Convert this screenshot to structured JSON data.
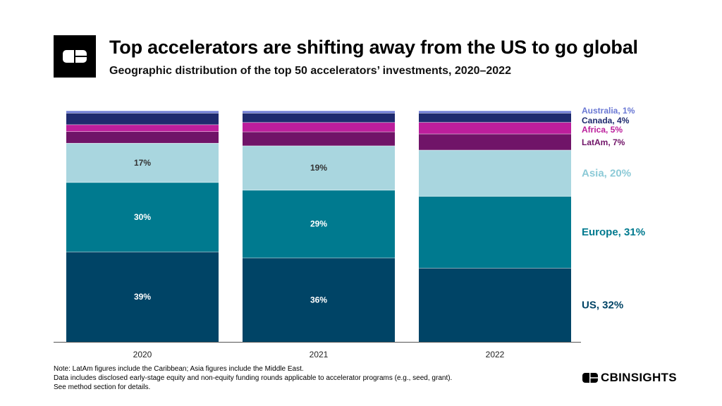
{
  "header": {
    "title": "Top accelerators are shifting away from the US to go global",
    "subtitle": "Geographic distribution of the top 50 accelerators’ investments, 2020–2022"
  },
  "colors": {
    "US": "#004466",
    "Europe": "#007a8f",
    "Asia": "#a9d6df",
    "LatAm": "#701468",
    "Africa": "#bc1e9c",
    "Canada": "#1e2a6e",
    "Australia": "#6a78d4"
  },
  "chart_data": {
    "type": "bar",
    "stacked": true,
    "categories": [
      "2020",
      "2021",
      "2022"
    ],
    "ylim": [
      0,
      100
    ],
    "series": [
      {
        "name": "US",
        "values": [
          39,
          36,
          32
        ],
        "labels": [
          "39%",
          "36%",
          ""
        ]
      },
      {
        "name": "Europe",
        "values": [
          30,
          29,
          31
        ],
        "labels": [
          "30%",
          "29%",
          ""
        ]
      },
      {
        "name": "Asia",
        "values": [
          17,
          19,
          20
        ],
        "labels": [
          "17%",
          "19%",
          ""
        ]
      },
      {
        "name": "LatAm",
        "values": [
          5,
          6,
          7
        ],
        "labels": [
          "",
          "",
          ""
        ]
      },
      {
        "name": "Africa",
        "values": [
          3,
          4,
          5
        ],
        "labels": [
          "",
          "",
          ""
        ]
      },
      {
        "name": "Canada",
        "values": [
          5,
          4,
          4
        ],
        "labels": [
          "",
          "",
          ""
        ]
      },
      {
        "name": "Australia",
        "values": [
          1,
          1,
          1
        ],
        "labels": [
          "",
          "",
          ""
        ]
      }
    ],
    "end_labels": [
      {
        "series": "Australia",
        "text": "Australia, 1%"
      },
      {
        "series": "Canada",
        "text": "Canada, 4%"
      },
      {
        "series": "Africa",
        "text": "Africa, 5%"
      },
      {
        "series": "LatAm",
        "text": "LatAm, 7%"
      },
      {
        "series": "Asia",
        "text": "Asia, 20%"
      },
      {
        "series": "Europe",
        "text": "Europe, 31%"
      },
      {
        "series": "US",
        "text": "US, 32%"
      }
    ]
  },
  "notes": [
    "Note: LatAm figures include the Caribbean; Asia figures include the Middle East.",
    "Data includes disclosed early-stage equity and non-equity funding rounds applicable to accelerator programs (e.g., seed, grant).",
    "See method section for details."
  ],
  "brand": {
    "text": "CBINSIGHTS",
    "icon": "cb-logo-icon"
  }
}
